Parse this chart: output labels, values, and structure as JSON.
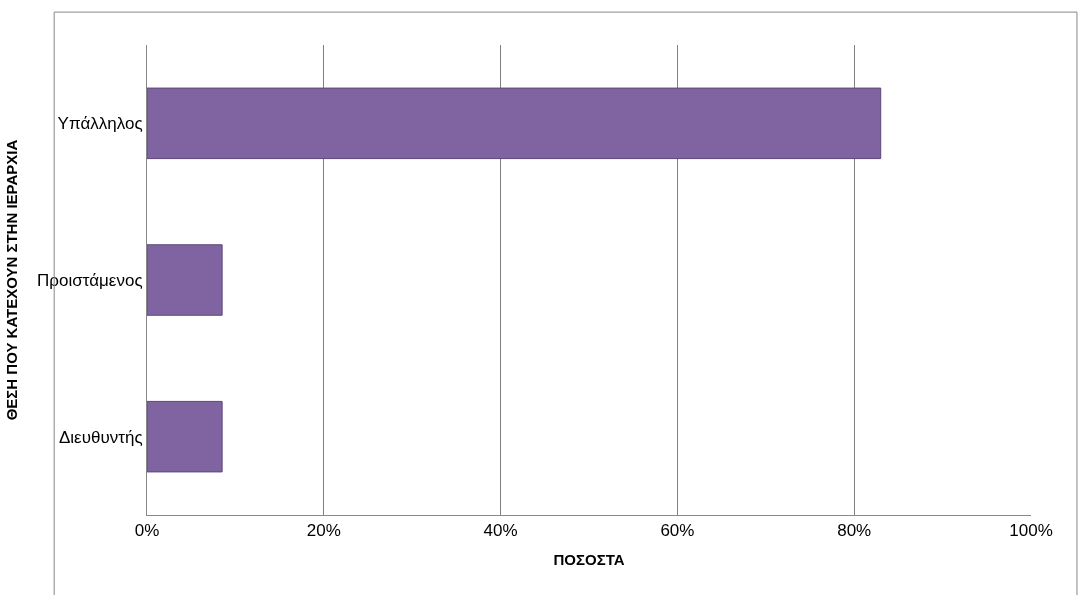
{
  "chart_data": {
    "type": "bar",
    "orientation": "horizontal",
    "xlabel": "ΠΟΣΟΣΤΑ",
    "ylabel": "ΘΕΣΗ ΠΟΥ ΚΑΤΕΧΟΥΝ ΣΤΗΝ ΙΕΡΑΡΧΙΑ",
    "categories": [
      "Υπάλληλος",
      "Προιστάμενος",
      "Διευθυντής"
    ],
    "values": [
      83,
      8.5,
      8.5
    ],
    "color": "#8064a2",
    "xlim": [
      0,
      100
    ],
    "xticks": [
      {
        "value": 0,
        "label": "0%"
      },
      {
        "value": 20,
        "label": "20%"
      },
      {
        "value": 40,
        "label": "40%"
      },
      {
        "value": 60,
        "label": "60%"
      },
      {
        "value": 80,
        "label": "80%"
      },
      {
        "value": 100,
        "label": "100%"
      }
    ],
    "grid": "x",
    "legend": false
  }
}
